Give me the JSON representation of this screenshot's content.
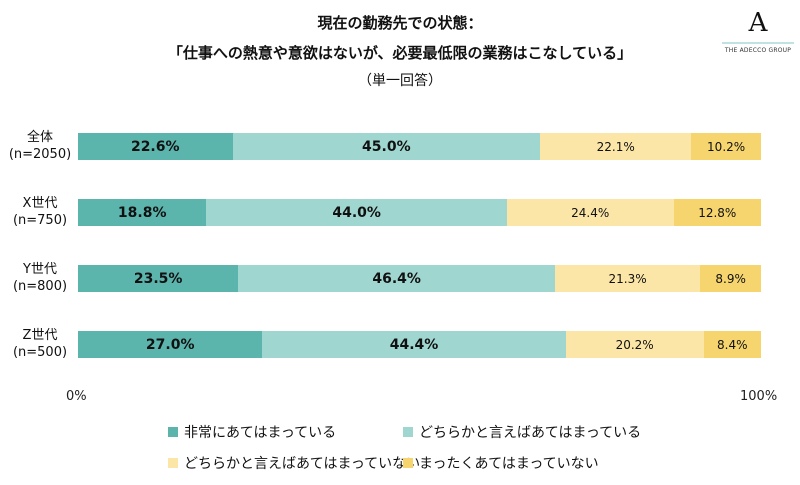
{
  "title_line1": "現在の勤務先での状態：",
  "title_line2": "「仕事への熱意や意欲はないが、必要最低限の業務はこなしている」",
  "subtitle": "（単一回答）",
  "logo": {
    "text": "THE ADECCO GROUP",
    "mark": "A"
  },
  "chart_data": {
    "type": "bar",
    "stacked": true,
    "orientation": "horizontal",
    "title": "現在の勤務先での状態：「仕事への熱意や意欲はないが、必要最低限の業務はこなしている」",
    "subtitle": "（単一回答）",
    "categories": [
      {
        "name": "全体",
        "n": "(n=2050)"
      },
      {
        "name": "X世代",
        "n": "(n=750)"
      },
      {
        "name": "Y世代",
        "n": "(n=800)"
      },
      {
        "name": "Z世代",
        "n": "(n=500)"
      }
    ],
    "series": [
      {
        "name": "非常にあてはまっている",
        "color": "#5bb5ad",
        "values": [
          22.6,
          18.8,
          23.5,
          27.0
        ],
        "labels": [
          "22.6%",
          "18.8%",
          "23.5%",
          "27.0%"
        ]
      },
      {
        "name": "どちらかと言えばあてはまっている",
        "color": "#a0d6d0",
        "values": [
          45.0,
          44.0,
          46.4,
          44.4
        ],
        "labels": [
          "45.0%",
          "44.0%",
          "46.4%",
          "44.4%"
        ]
      },
      {
        "name": "どちらかと言えばあてはまっていない",
        "color": "#fbe6a8",
        "values": [
          22.1,
          24.4,
          21.3,
          20.2
        ],
        "labels": [
          "22.1%",
          "24.4%",
          "21.3%",
          "20.2%"
        ]
      },
      {
        "name": "まったくあてはまっていない",
        "color": "#f6d56f",
        "values": [
          10.2,
          12.8,
          8.9,
          8.4
        ],
        "labels": [
          "10.2%",
          "12.8%",
          "8.9%",
          "8.4%"
        ]
      }
    ],
    "xlim": [
      0,
      100
    ],
    "x_tick_labels": [
      "0%",
      "100%"
    ],
    "grid": false,
    "legend_position": "bottom"
  }
}
